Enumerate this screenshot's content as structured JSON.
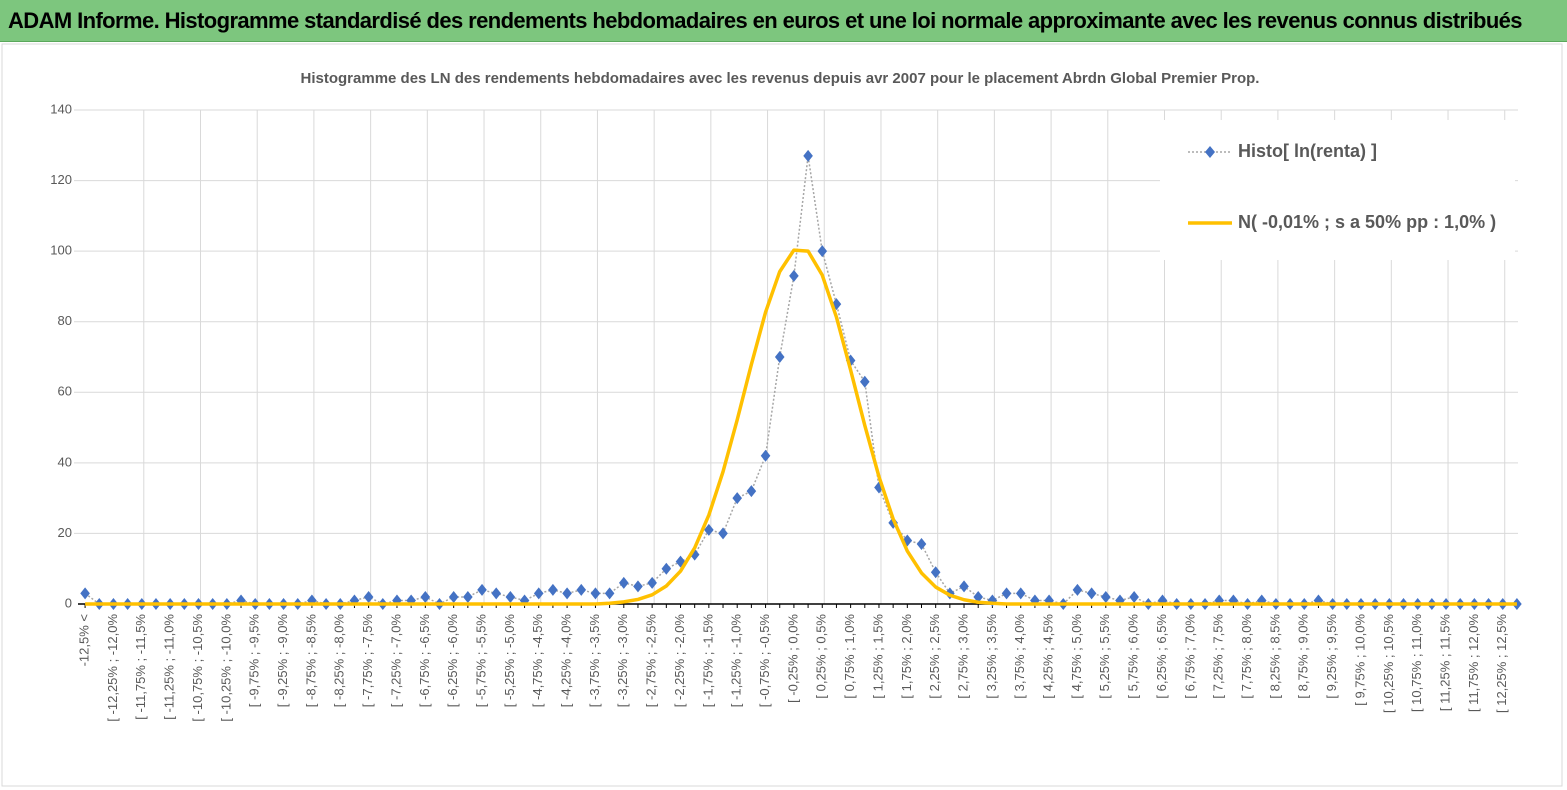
{
  "header": {
    "title": "ADAM Informe. Histogramme standardisé des rendements hebdomadaires en euros et une loi normale approximante avec les revenus connus distribués"
  },
  "chart_data": {
    "type": "line",
    "title": "Histogramme  des LN des rendements hebdomadaires avec les revenus depuis avr 2007 pour le placement Abrdn Global Premier Prop.",
    "categories": [
      "-12,5% <",
      null,
      "[ -12,25% ; -12,0%",
      null,
      "[ -11,75% ; -11,5%",
      null,
      "[ -11,25% ; -11,0%",
      null,
      "[ -10,75% ; -10,5%",
      null,
      "[ -10,25% ; -10,0%",
      null,
      "[ -9,75% ; -9,5%",
      null,
      "[ -9,25% ; -9,0%",
      null,
      "[ -8,75% ; -8,5%",
      null,
      "[ -8,25% ; -8,0%",
      null,
      "[ -7,75% ; -7,5%",
      null,
      "[ -7,25% ; -7,0%",
      null,
      "[ -6,75% ; -6,5%",
      null,
      "[ -6,25% ; -6,0%",
      null,
      "[ -5,75% ; -5,5%",
      null,
      "[ -5,25% ; -5,0%",
      null,
      "[ -4,75% ; -4,5%",
      null,
      "[ -4,25% ; -4,0%",
      null,
      "[ -3,75% ; -3,5%",
      null,
      "[ -3,25% ; -3,0%",
      null,
      "[ -2,75% ; -2,5%",
      null,
      "[ -2,25% ; -2,0%",
      null,
      "[ -1,75% ; -1,5%",
      null,
      "[ -1,25% ; -1,0%",
      null,
      "[ -0,75% ; -0,5%",
      null,
      "[ -0,25% ; 0,0%",
      null,
      "[ 0,25% ; 0,5%",
      null,
      "[ 0,75% ; 1,0%",
      null,
      "[ 1,25% ; 1,5%",
      null,
      "[ 1,75% ; 2,0%",
      null,
      "[ 2,25% ; 2,5%",
      null,
      "[ 2,75% ; 3,0%",
      null,
      "[ 3,25% ; 3,5%",
      null,
      "[ 3,75% ; 4,0%",
      null,
      "[ 4,25% ; 4,5%",
      null,
      "[ 4,75% ; 5,0%",
      null,
      "[ 5,25% ; 5,5%",
      null,
      "[ 5,75% ; 6,0%",
      null,
      "[ 6,25% ; 6,5%",
      null,
      "[ 6,75% ; 7,0%",
      null,
      "[ 7,25% ; 7,5%",
      null,
      "[ 7,75% ; 8,0%",
      null,
      "[ 8,25% ; 8,5%",
      null,
      "[ 8,75% ; 9,0%",
      null,
      "[ 9,25% ; 9,5%",
      null,
      "[ 9,75% ; 10,0%",
      null,
      "[ 10,25% ; 10,5%",
      null,
      "[ 10,75% ; 11,0%",
      null,
      "[ 11,25% ; 11,5%",
      null,
      "[ 11,75% ; 12,0%",
      null,
      "[ 12,25% ; 12,5%",
      null
    ],
    "series": [
      {
        "name": "Histo[ ln(renta) ]",
        "color": "#4472c4",
        "style": "dotted-markers",
        "values": [
          3,
          0,
          0,
          0,
          0,
          0,
          0,
          0,
          0,
          0,
          0,
          1,
          0,
          0,
          0,
          0,
          1,
          0,
          0,
          1,
          2,
          0,
          1,
          1,
          2,
          0,
          2,
          2,
          4,
          3,
          2,
          1,
          3,
          4,
          3,
          4,
          3,
          3,
          6,
          5,
          6,
          10,
          12,
          14,
          21,
          20,
          30,
          32,
          42,
          70,
          93,
          127,
          100,
          85,
          69,
          63,
          33,
          23,
          18,
          17,
          9,
          3,
          5,
          2,
          1,
          3,
          3,
          1,
          1,
          0,
          4,
          3,
          2,
          1,
          2,
          0,
          1,
          0,
          0,
          0,
          1,
          1,
          0,
          1,
          0,
          0,
          0,
          1,
          0,
          0,
          0,
          0,
          0,
          0,
          0,
          0,
          0,
          0,
          0,
          0,
          0,
          0
        ]
      },
      {
        "name": "N( -0,01% ; s a 50% pp : 1,0% )",
        "color": "#ffc000",
        "style": "solid",
        "values": [
          0,
          0,
          0,
          0,
          0,
          0,
          0,
          0,
          0,
          0,
          0,
          0,
          0,
          0,
          0,
          0,
          0,
          0,
          0,
          0,
          0,
          0,
          0,
          0,
          0,
          0,
          0,
          0,
          0,
          0,
          0,
          0,
          0,
          0,
          0,
          0,
          0,
          0.2,
          0.6,
          1.3,
          2.6,
          5.1,
          9.3,
          15.9,
          25.2,
          37.5,
          52.2,
          67.9,
          82.7,
          94.2,
          100.3,
          100.0,
          93.2,
          81.3,
          66.3,
          50.6,
          36.1,
          24.1,
          15.0,
          8.8,
          4.8,
          2.5,
          1.2,
          0.5,
          0.2,
          0,
          0,
          0,
          0,
          0,
          0,
          0,
          0,
          0,
          0,
          0,
          0,
          0,
          0,
          0,
          0,
          0,
          0,
          0,
          0,
          0,
          0,
          0,
          0,
          0,
          0,
          0,
          0,
          0,
          0,
          0,
          0,
          0,
          0,
          0,
          0,
          0
        ]
      }
    ],
    "ylim": [
      0,
      140
    ],
    "yticks": [
      0,
      20,
      40,
      60,
      80,
      100,
      120,
      140
    ],
    "grid": true,
    "legend": "upper right"
  }
}
